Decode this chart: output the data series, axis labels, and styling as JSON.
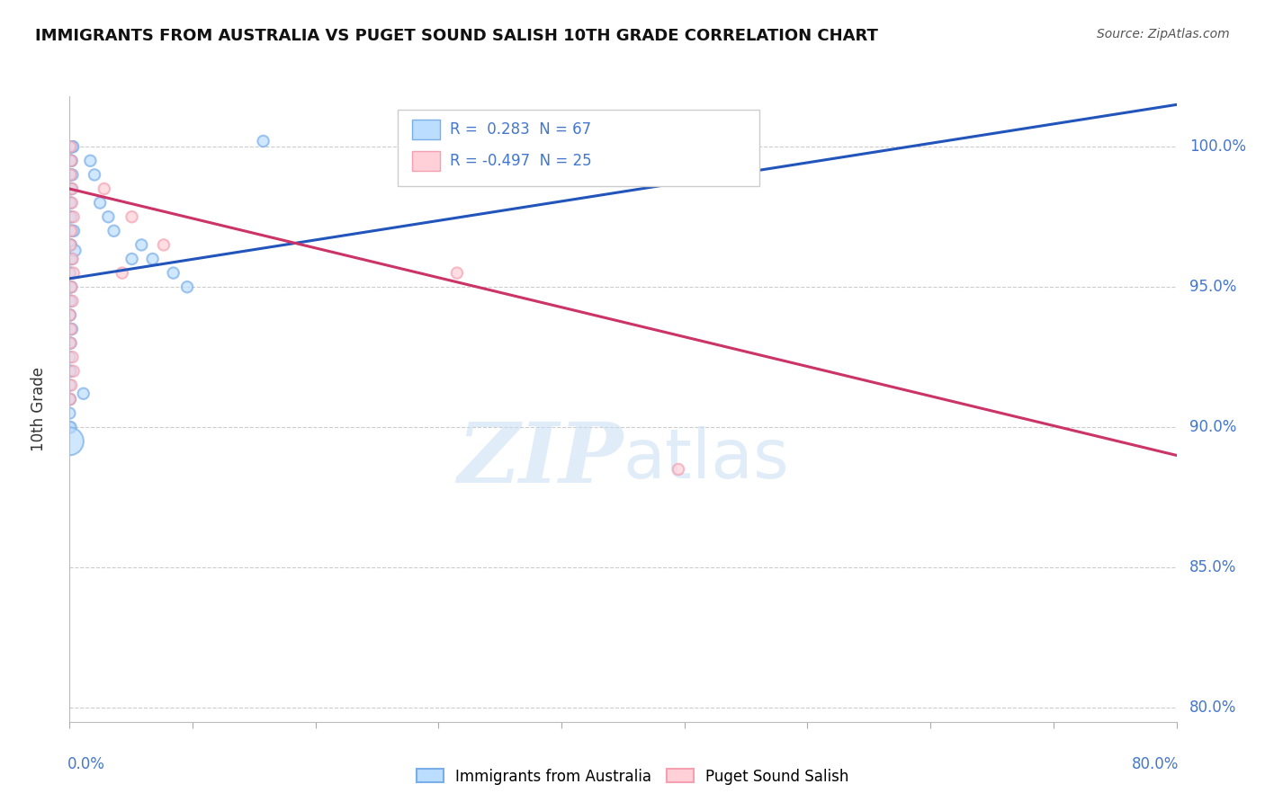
{
  "title": "IMMIGRANTS FROM AUSTRALIA VS PUGET SOUND SALISH 10TH GRADE CORRELATION CHART",
  "source": "Source: ZipAtlas.com",
  "ylabel": "10th Grade",
  "x_min": 0.0,
  "x_max": 80.0,
  "y_min": 79.5,
  "y_max": 101.8,
  "y_ticks": [
    80.0,
    85.0,
    90.0,
    95.0,
    100.0
  ],
  "blue_R": " 0.283",
  "blue_N": "67",
  "pink_R": "-0.497",
  "pink_N": "25",
  "blue_dot_color": "#7AAEE8",
  "pink_dot_color": "#F4A0B0",
  "blue_fill_color": "#BBDDFF",
  "pink_fill_color": "#FFD0D8",
  "blue_line_color": "#2255BB",
  "pink_line_color": "#CC3366",
  "legend_label_blue": "Immigrants from Australia",
  "legend_label_pink": "Puget Sound Salish",
  "blue_points_x": [
    0.0,
    0.05,
    0.1,
    0.15,
    0.2,
    0.25,
    0.05,
    0.1,
    0.15,
    0.0,
    0.05,
    0.2,
    0.0,
    0.05,
    0.15,
    0.0,
    0.08,
    0.0,
    0.03,
    0.12,
    0.0,
    0.08,
    0.18,
    0.0,
    0.04,
    0.1,
    0.0,
    0.08,
    0.18,
    0.0,
    0.04,
    0.0,
    0.08,
    0.13,
    0.0,
    0.08,
    0.0,
    0.04,
    0.0,
    0.08,
    0.17,
    0.0,
    0.08,
    0.0,
    0.0,
    0.08,
    0.0,
    0.0,
    0.04,
    0.0,
    0.0,
    0.08,
    1.5,
    1.8,
    2.2,
    2.8,
    3.2,
    4.5,
    5.2,
    6.0,
    7.5,
    8.5,
    0.0,
    1.0,
    14.0,
    0.3,
    0.4
  ],
  "blue_points_y": [
    100.0,
    100.0,
    100.0,
    100.0,
    100.0,
    100.0,
    99.5,
    99.5,
    99.5,
    99.0,
    99.0,
    99.0,
    98.5,
    98.5,
    98.5,
    98.0,
    98.0,
    97.5,
    97.5,
    97.5,
    97.0,
    97.0,
    97.0,
    96.5,
    96.5,
    96.5,
    96.0,
    96.0,
    96.0,
    95.5,
    95.5,
    95.0,
    95.0,
    95.0,
    94.5,
    94.5,
    94.0,
    94.0,
    93.5,
    93.5,
    93.5,
    93.0,
    93.0,
    92.5,
    92.0,
    92.0,
    91.5,
    91.0,
    91.0,
    90.5,
    90.0,
    90.0,
    99.5,
    99.0,
    98.0,
    97.5,
    97.0,
    96.0,
    96.5,
    96.0,
    95.5,
    95.0,
    89.5,
    91.2,
    100.2,
    97.0,
    96.3
  ],
  "blue_sizes": [
    80,
    80,
    80,
    80,
    80,
    80,
    80,
    80,
    80,
    80,
    80,
    80,
    80,
    80,
    80,
    80,
    80,
    80,
    80,
    80,
    80,
    80,
    80,
    80,
    80,
    80,
    80,
    80,
    80,
    80,
    80,
    80,
    80,
    80,
    80,
    80,
    80,
    80,
    80,
    80,
    80,
    80,
    80,
    80,
    80,
    80,
    80,
    80,
    80,
    80,
    80,
    80,
    80,
    80,
    80,
    80,
    80,
    80,
    80,
    80,
    80,
    80,
    500,
    80,
    80,
    80,
    80
  ],
  "pink_points_x": [
    0.05,
    0.1,
    0.18,
    0.08,
    0.16,
    0.28,
    0.1,
    0.2,
    0.06,
    0.28,
    0.12,
    2.5,
    4.5,
    6.8,
    3.8,
    0.2,
    0.02,
    0.1,
    0.06,
    0.2,
    0.28,
    0.12,
    28.0,
    44.0,
    0.03
  ],
  "pink_points_y": [
    100.0,
    99.5,
    98.5,
    99.0,
    98.0,
    97.5,
    97.0,
    96.0,
    96.5,
    95.5,
    95.0,
    98.5,
    97.5,
    96.5,
    95.5,
    94.5,
    94.0,
    93.5,
    93.0,
    92.5,
    92.0,
    91.5,
    95.5,
    88.5,
    91.0
  ],
  "pink_sizes": [
    80,
    80,
    80,
    80,
    80,
    80,
    80,
    80,
    80,
    80,
    80,
    80,
    80,
    80,
    80,
    80,
    80,
    80,
    80,
    80,
    80,
    80,
    80,
    80,
    80
  ],
  "blue_trend_x": [
    0.0,
    80.0
  ],
  "blue_trend_y": [
    95.3,
    101.5
  ],
  "pink_trend_x": [
    0.0,
    80.0
  ],
  "pink_trend_y": [
    98.5,
    89.0
  ],
  "watermark_zip": "ZIP",
  "watermark_atlas": "atlas",
  "bg_color": "#FFFFFF",
  "grid_color": "#CCCCCC",
  "axis_num_color": "#4477CC",
  "title_color": "#111111"
}
